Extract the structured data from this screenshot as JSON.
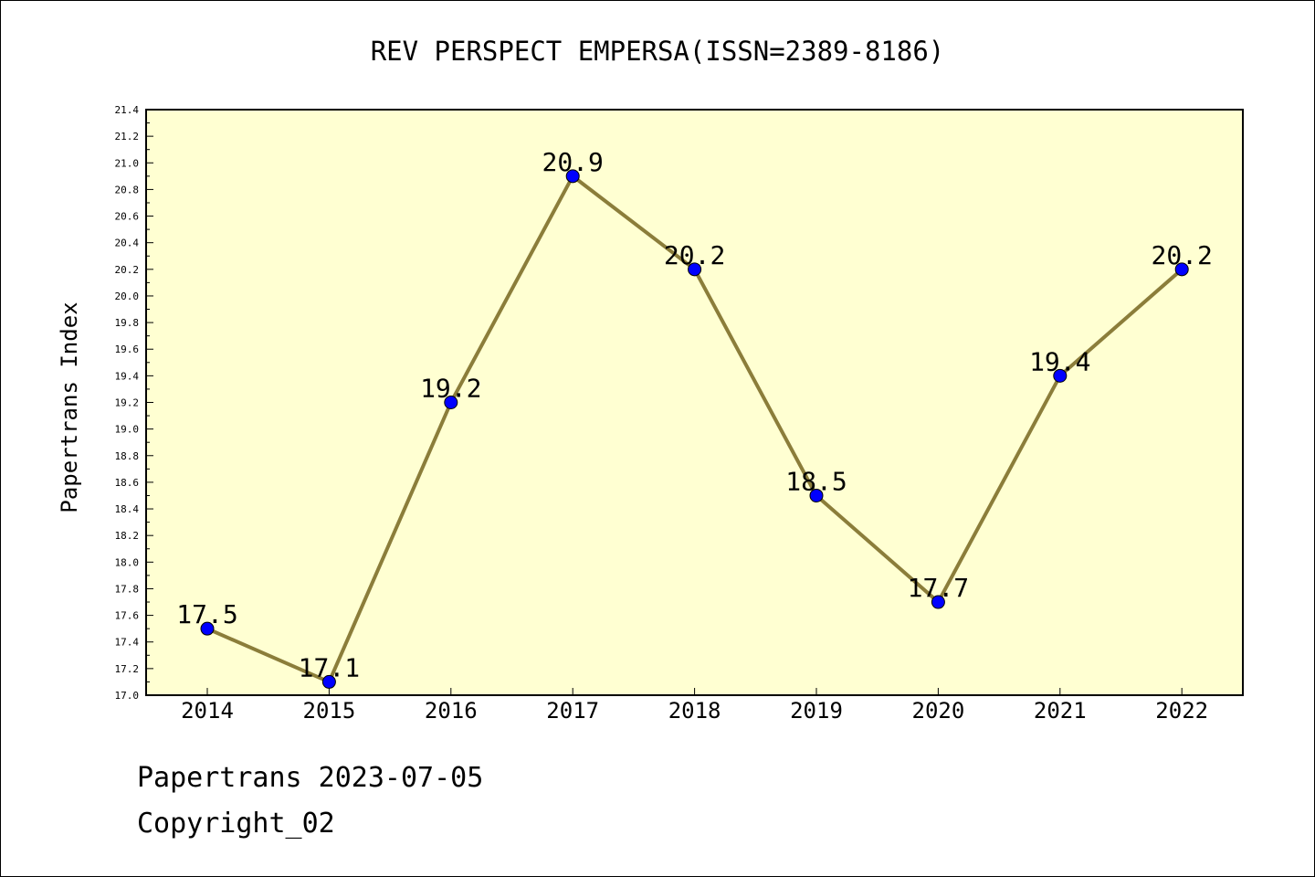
{
  "chart_data": {
    "type": "line",
    "title": "REV PERSPECT EMPERSA(ISSN=2389-8186)",
    "xlabel": "",
    "ylabel": "Papertrans Index",
    "categories": [
      "2014",
      "2015",
      "2016",
      "2017",
      "2018",
      "2019",
      "2020",
      "2021",
      "2022"
    ],
    "values": [
      17.5,
      17.1,
      19.2,
      20.9,
      20.2,
      18.5,
      17.7,
      19.4,
      20.2
    ],
    "data_labels": [
      "17.5",
      "17.1",
      "19.2",
      "20.9",
      "20.2",
      "18.5",
      "17.7",
      "19.4",
      "20.2"
    ],
    "ylim": [
      17.0,
      21.4
    ],
    "ytick_labels": [
      "17.0",
      "17.2",
      "17.4",
      "17.6",
      "17.8",
      "18.0",
      "18.2",
      "18.4",
      "18.6",
      "18.8",
      "19.0",
      "19.2",
      "19.4",
      "19.6",
      "19.8",
      "20.0",
      "20.2",
      "20.4",
      "20.6",
      "20.8",
      "21.0",
      "21.2",
      "21.4"
    ],
    "grid": false,
    "legend": "none",
    "colors": {
      "plot_background": "#ffffd2",
      "line": "#8b7d3a",
      "marker": "#0000ff"
    }
  },
  "footer": {
    "line1": "Papertrans 2023-07-05",
    "line2": "Copyright_02"
  }
}
